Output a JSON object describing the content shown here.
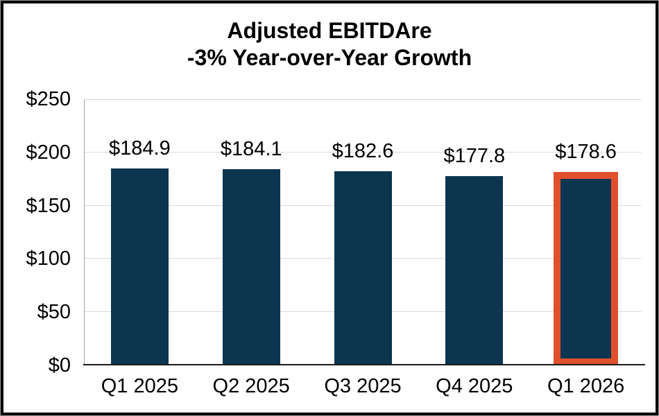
{
  "chart_data": {
    "type": "bar",
    "title": "Adjusted EBITDAre",
    "subtitle": "-3% Year-over-Year Growth",
    "categories": [
      "Q1 2025",
      "Q2 2025",
      "Q3 2025",
      "Q4 2025",
      "Q1 2026"
    ],
    "values": [
      184.9,
      184.1,
      182.6,
      177.8,
      178.6
    ],
    "bar_labels": [
      "$184.9",
      "$184.1",
      "$182.6",
      "$177.8",
      "$178.6"
    ],
    "xlabel": "",
    "ylabel": "",
    "ylim": [
      0,
      250
    ],
    "yticks": [
      {
        "label": "$0",
        "value": 0
      },
      {
        "label": "$50",
        "value": 50
      },
      {
        "label": "$100",
        "value": 100
      },
      {
        "label": "$150",
        "value": 150
      },
      {
        "label": "$200",
        "value": 200
      },
      {
        "label": "$250",
        "value": 250
      }
    ],
    "grid": true,
    "legend_position": "none",
    "highlight_index": 4,
    "colors": {
      "bar": "#0C3550",
      "highlight_outline": "#E0502D",
      "gridline": "#D9D9D9",
      "y_axis_line": "#A6A6A6",
      "x_axis_line": "#1A1A1A",
      "text": "#000000",
      "frame_border": "#000000"
    }
  }
}
